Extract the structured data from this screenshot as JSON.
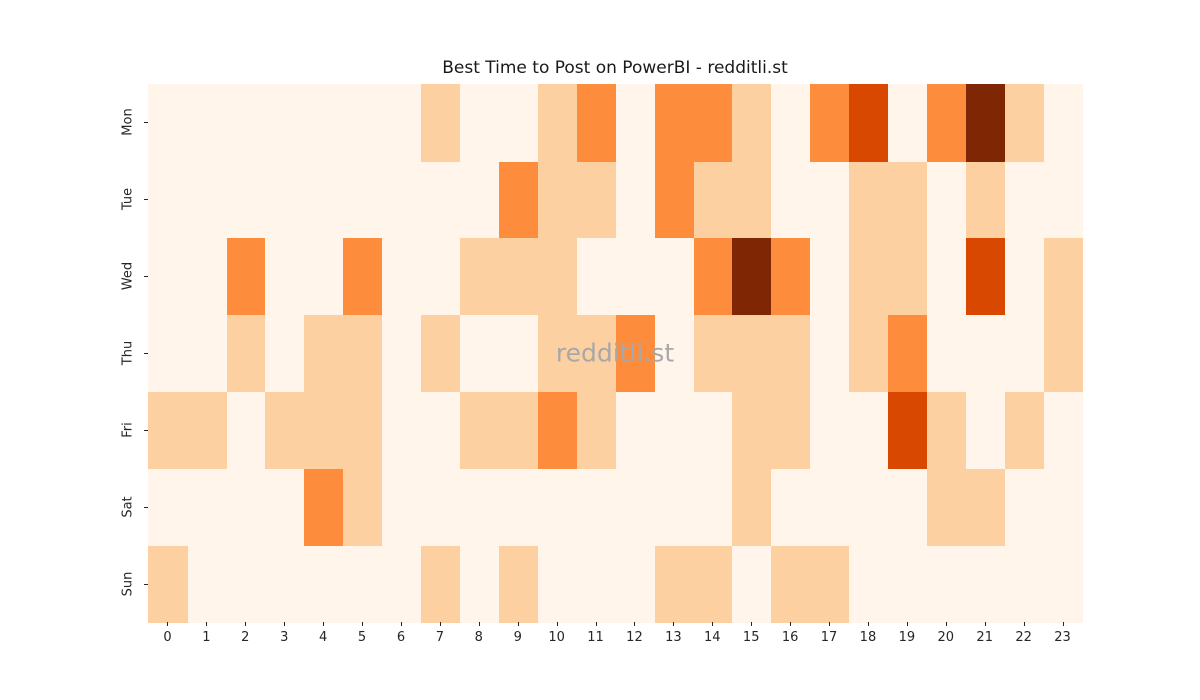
{
  "chart_data": {
    "type": "heatmap",
    "title": "Best Time to Post on PowerBI - redditli.st",
    "watermark": "redditli.st",
    "xlabel": "",
    "ylabel": "",
    "x_tick_labels": [
      "0",
      "1",
      "2",
      "3",
      "4",
      "5",
      "6",
      "7",
      "8",
      "9",
      "10",
      "11",
      "12",
      "13",
      "14",
      "15",
      "16",
      "17",
      "18",
      "19",
      "20",
      "21",
      "22",
      "23"
    ],
    "y_tick_labels": [
      "Mon",
      "Tue",
      "Wed",
      "Thu",
      "Fri",
      "Sat",
      "Sun"
    ],
    "values": [
      [
        0,
        0,
        0,
        0,
        0,
        0,
        0,
        1,
        0,
        0,
        1,
        2,
        0,
        2,
        2,
        1,
        0,
        2,
        3,
        0,
        2,
        4,
        1,
        0
      ],
      [
        0,
        0,
        0,
        0,
        0,
        0,
        0,
        0,
        0,
        2,
        1,
        1,
        0,
        2,
        1,
        1,
        0,
        0,
        1,
        1,
        0,
        1,
        0,
        0
      ],
      [
        0,
        0,
        2,
        0,
        0,
        2,
        0,
        0,
        1,
        1,
        1,
        0,
        0,
        0,
        2,
        4,
        2,
        0,
        1,
        1,
        0,
        3,
        0,
        1
      ],
      [
        0,
        0,
        1,
        0,
        1,
        1,
        0,
        1,
        0,
        0,
        1,
        1,
        2,
        0,
        1,
        1,
        1,
        0,
        1,
        2,
        0,
        0,
        0,
        1
      ],
      [
        1,
        1,
        0,
        1,
        1,
        1,
        0,
        0,
        1,
        1,
        2,
        1,
        0,
        0,
        0,
        1,
        1,
        0,
        0,
        3,
        1,
        0,
        1,
        0
      ],
      [
        0,
        0,
        0,
        0,
        2,
        1,
        0,
        0,
        0,
        0,
        0,
        0,
        0,
        0,
        0,
        1,
        0,
        0,
        0,
        0,
        1,
        1,
        0,
        0
      ],
      [
        1,
        0,
        0,
        0,
        0,
        0,
        0,
        1,
        0,
        1,
        0,
        0,
        0,
        1,
        1,
        0,
        1,
        1,
        0,
        0,
        0,
        0,
        0,
        0
      ]
    ],
    "value_range": [
      0,
      4
    ],
    "colormap": "Oranges",
    "value_colors": {
      "0": "#fff5eb",
      "1": "#fdd0a2",
      "2": "#fd8d3c",
      "3": "#d94801",
      "4": "#7f2704"
    },
    "grid": false,
    "legend": "none",
    "title_color": "#1a1a1a",
    "axis_text_color": "#262626",
    "watermark_color": "#a8a8a8",
    "figure_background": "#ffffff"
  }
}
